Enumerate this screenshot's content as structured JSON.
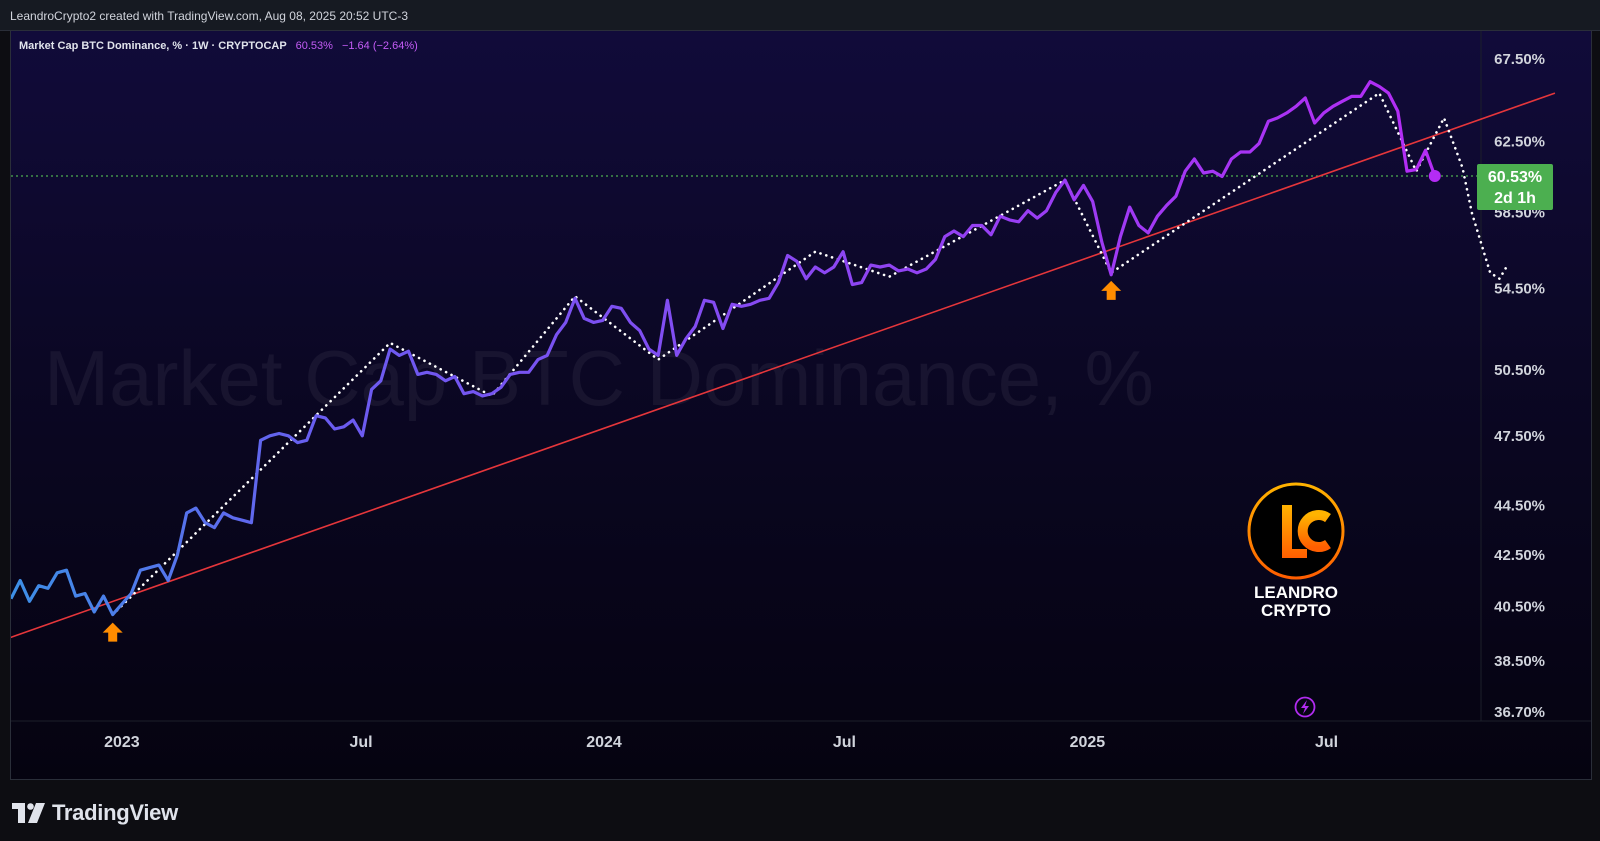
{
  "header": {
    "created_text": "LeandroCrypto2 created with TradingView.com, Aug 08, 2025 20:52 UTC-3"
  },
  "legend": {
    "symbol": "Market Cap BTC Dominance, % · 1W · CRYPTOCAP",
    "price": "60.53%",
    "change": "−1.64 (−2.64%)"
  },
  "watermark": "Market Cap BTC Dominance, %",
  "price_label": {
    "value": "60.53%",
    "countdown": "2d 1h",
    "color": "#4caf50"
  },
  "logo": {
    "line1": "LEANDRO",
    "line2": "CRYPTO",
    "icon": "lc-logo-icon"
  },
  "footer": {
    "brand": "TradingView",
    "icon": "tradingview-logo-icon"
  },
  "colors": {
    "line_start": "#3d8fe6",
    "line_end": "#b42cf5",
    "trendline": "#e5363b",
    "projection": "#ffffff",
    "arrow": "#ff8c00",
    "current_line": "#4caf50"
  },
  "chart_data": {
    "type": "line",
    "title": "Market Cap BTC Dominance, %",
    "interval": "1W",
    "source": "CRYPTOCAP",
    "x_axis": {
      "range": [
        "2022-10-09",
        "2025-10-26"
      ],
      "tick_labels": [
        {
          "label": "2023",
          "date": "2023-01-01"
        },
        {
          "label": "Jul",
          "date": "2023-07-01"
        },
        {
          "label": "2024",
          "date": "2024-01-01"
        },
        {
          "label": "Jul",
          "date": "2024-07-01"
        },
        {
          "label": "2025",
          "date": "2025-01-01"
        },
        {
          "label": "Jul",
          "date": "2025-07-01"
        }
      ]
    },
    "y_axis": {
      "scale": "log",
      "range": [
        36.4,
        69.3
      ],
      "tick_labels": [
        "67.50%",
        "62.50%",
        "58.50%",
        "54.50%",
        "50.50%",
        "47.50%",
        "44.50%",
        "42.50%",
        "40.50%",
        "38.50%",
        "36.70%"
      ],
      "tick_values": [
        67.5,
        62.5,
        58.5,
        54.5,
        50.5,
        47.5,
        44.5,
        42.5,
        40.5,
        38.5,
        36.7
      ]
    },
    "current_value": 60.53,
    "series": [
      {
        "type": "line",
        "points": [
          [
            "2022-10-09",
            40.8
          ],
          [
            "2022-10-16",
            41.5
          ],
          [
            "2022-10-23",
            40.7
          ],
          [
            "2022-10-30",
            41.3
          ],
          [
            "2022-11-06",
            41.2
          ],
          [
            "2022-11-13",
            41.8
          ],
          [
            "2022-11-20",
            41.9
          ],
          [
            "2022-11-27",
            40.9
          ],
          [
            "2022-12-04",
            41.0
          ],
          [
            "2022-12-11",
            40.3
          ],
          [
            "2022-12-18",
            40.9
          ],
          [
            "2022-12-25",
            40.2
          ],
          [
            "2023-01-01",
            40.6
          ],
          [
            "2023-01-08",
            41.0
          ],
          [
            "2023-01-15",
            41.9
          ],
          [
            "2023-01-22",
            42.0
          ],
          [
            "2023-01-29",
            42.1
          ],
          [
            "2023-02-05",
            41.5
          ],
          [
            "2023-02-12",
            42.5
          ],
          [
            "2023-02-19",
            44.2
          ],
          [
            "2023-02-26",
            44.4
          ],
          [
            "2023-03-05",
            43.8
          ],
          [
            "2023-03-12",
            43.6
          ],
          [
            "2023-03-19",
            44.2
          ],
          [
            "2023-03-26",
            44.0
          ],
          [
            "2023-04-02",
            43.9
          ],
          [
            "2023-04-09",
            43.8
          ],
          [
            "2023-04-16",
            47.3
          ],
          [
            "2023-04-23",
            47.5
          ],
          [
            "2023-04-30",
            47.6
          ],
          [
            "2023-05-07",
            47.5
          ],
          [
            "2023-05-14",
            47.2
          ],
          [
            "2023-05-21",
            47.3
          ],
          [
            "2023-05-28",
            48.4
          ],
          [
            "2023-06-04",
            48.3
          ],
          [
            "2023-06-11",
            47.8
          ],
          [
            "2023-06-18",
            47.9
          ],
          [
            "2023-06-25",
            48.2
          ],
          [
            "2023-07-02",
            47.5
          ],
          [
            "2023-07-09",
            49.6
          ],
          [
            "2023-07-16",
            50.0
          ],
          [
            "2023-07-23",
            51.5
          ],
          [
            "2023-07-30",
            51.2
          ],
          [
            "2023-08-06",
            51.4
          ],
          [
            "2023-08-13",
            50.3
          ],
          [
            "2023-08-20",
            50.4
          ],
          [
            "2023-08-27",
            50.3
          ],
          [
            "2023-09-03",
            50.0
          ],
          [
            "2023-09-10",
            50.2
          ],
          [
            "2023-09-17",
            49.4
          ],
          [
            "2023-09-24",
            49.5
          ],
          [
            "2023-10-01",
            49.3
          ],
          [
            "2023-10-08",
            49.4
          ],
          [
            "2023-10-15",
            49.7
          ],
          [
            "2023-10-22",
            50.3
          ],
          [
            "2023-10-29",
            50.4
          ],
          [
            "2023-11-05",
            50.4
          ],
          [
            "2023-11-12",
            51.0
          ],
          [
            "2023-11-19",
            51.2
          ],
          [
            "2023-11-26",
            52.2
          ],
          [
            "2023-12-03",
            52.8
          ],
          [
            "2023-12-10",
            54.0
          ],
          [
            "2023-12-17",
            53.0
          ],
          [
            "2023-12-24",
            52.8
          ],
          [
            "2023-12-31",
            52.9
          ],
          [
            "2024-01-07",
            53.6
          ],
          [
            "2024-01-14",
            53.5
          ],
          [
            "2024-01-21",
            52.8
          ],
          [
            "2024-01-28",
            52.4
          ],
          [
            "2024-02-04",
            51.5
          ],
          [
            "2024-02-11",
            51.2
          ],
          [
            "2024-02-18",
            53.9
          ],
          [
            "2024-02-25",
            51.2
          ],
          [
            "2024-03-03",
            52.0
          ],
          [
            "2024-03-10",
            52.6
          ],
          [
            "2024-03-17",
            53.9
          ],
          [
            "2024-03-24",
            53.8
          ],
          [
            "2024-03-31",
            52.5
          ],
          [
            "2024-04-07",
            53.7
          ],
          [
            "2024-04-14",
            53.6
          ],
          [
            "2024-04-21",
            53.7
          ],
          [
            "2024-04-28",
            53.9
          ],
          [
            "2024-05-05",
            54.0
          ],
          [
            "2024-05-12",
            54.8
          ],
          [
            "2024-05-19",
            56.2
          ],
          [
            "2024-05-26",
            55.9
          ],
          [
            "2024-06-02",
            55.0
          ],
          [
            "2024-06-09",
            55.6
          ],
          [
            "2024-06-16",
            55.3
          ],
          [
            "2024-06-23",
            55.6
          ],
          [
            "2024-06-30",
            56.4
          ],
          [
            "2024-07-07",
            54.7
          ],
          [
            "2024-07-14",
            54.8
          ],
          [
            "2024-07-21",
            55.7
          ],
          [
            "2024-07-28",
            55.6
          ],
          [
            "2024-08-04",
            55.7
          ],
          [
            "2024-08-11",
            55.4
          ],
          [
            "2024-08-18",
            55.5
          ],
          [
            "2024-08-25",
            55.3
          ],
          [
            "2024-09-01",
            55.5
          ],
          [
            "2024-09-08",
            56.0
          ],
          [
            "2024-09-15",
            57.2
          ],
          [
            "2024-09-22",
            57.5
          ],
          [
            "2024-09-29",
            57.2
          ],
          [
            "2024-10-06",
            57.8
          ],
          [
            "2024-10-13",
            57.8
          ],
          [
            "2024-10-20",
            57.3
          ],
          [
            "2024-10-27",
            58.3
          ],
          [
            "2024-11-03",
            58.1
          ],
          [
            "2024-11-10",
            58.0
          ],
          [
            "2024-11-17",
            58.6
          ],
          [
            "2024-11-24",
            58.2
          ],
          [
            "2024-12-01",
            58.6
          ],
          [
            "2024-12-08",
            59.6
          ],
          [
            "2024-12-15",
            60.3
          ],
          [
            "2024-12-22",
            59.2
          ],
          [
            "2024-12-29",
            60.0
          ],
          [
            "2025-01-05",
            59.1
          ],
          [
            "2025-01-12",
            56.9
          ],
          [
            "2025-01-19",
            55.2
          ],
          [
            "2025-01-26",
            57.2
          ],
          [
            "2025-02-02",
            58.8
          ],
          [
            "2025-02-09",
            57.8
          ],
          [
            "2025-02-16",
            57.4
          ],
          [
            "2025-02-23",
            58.3
          ],
          [
            "2025-03-02",
            58.9
          ],
          [
            "2025-03-09",
            59.4
          ],
          [
            "2025-03-16",
            60.8
          ],
          [
            "2025-03-23",
            61.5
          ],
          [
            "2025-03-30",
            60.7
          ],
          [
            "2025-04-06",
            60.8
          ],
          [
            "2025-04-13",
            60.5
          ],
          [
            "2025-04-20",
            61.5
          ],
          [
            "2025-04-27",
            61.9
          ],
          [
            "2025-05-04",
            61.9
          ],
          [
            "2025-05-11",
            62.4
          ],
          [
            "2025-05-18",
            63.7
          ],
          [
            "2025-05-25",
            63.9
          ],
          [
            "2025-06-01",
            64.2
          ],
          [
            "2025-06-08",
            64.6
          ],
          [
            "2025-06-15",
            65.1
          ],
          [
            "2025-06-22",
            63.6
          ],
          [
            "2025-06-29",
            64.2
          ],
          [
            "2025-07-06",
            64.6
          ],
          [
            "2025-07-13",
            64.9
          ],
          [
            "2025-07-20",
            65.2
          ],
          [
            "2025-07-27",
            65.2
          ],
          [
            "2025-08-03",
            66.1
          ],
          [
            "2025-08-10",
            65.8
          ],
          [
            "2025-08-17",
            65.4
          ],
          [
            "2025-08-24",
            64.3
          ],
          [
            "2025-08-31",
            60.8
          ],
          [
            "2025-09-07",
            60.9
          ]
        ]
      },
      {
        "type": "line",
        "points": [
          [
            "2025-09-14",
            62.0
          ],
          [
            "2025-09-21",
            60.53
          ]
        ]
      }
    ],
    "projection": {
      "type": "dotted-line",
      "points": [
        [
          "2022-12-25",
          40.2
        ],
        [
          "2023-07-23",
          51.8
        ],
        [
          "2023-10-08",
          49.3
        ],
        [
          "2023-12-10",
          54.1
        ],
        [
          "2024-02-11",
          51.0
        ],
        [
          "2024-06-09",
          56.4
        ],
        [
          "2024-08-04",
          55.1
        ],
        [
          "2024-12-15",
          60.3
        ],
        [
          "2025-01-19",
          55.3
        ],
        [
          "2025-08-10",
          65.4
        ],
        [
          "2025-09-07",
          60.8
        ],
        [
          "2025-09-28",
          63.9
        ],
        [
          "2025-10-12",
          61.0
        ],
        [
          "2025-10-19",
          58.5
        ],
        [
          "2025-11-02",
          55.3
        ],
        [
          "2025-11-09",
          55.0
        ],
        [
          "2025-11-16",
          55.8
        ]
      ]
    },
    "trendline": {
      "type": "line",
      "points": [
        [
          "2022-09-18",
          39.0
        ],
        [
          "2025-12-21",
          65.4
        ]
      ]
    },
    "markers": [
      {
        "type": "arrow-up",
        "date": "2022-12-25",
        "value": 40.2
      },
      {
        "type": "arrow-up",
        "date": "2025-01-19",
        "value": 55.3
      }
    ]
  }
}
